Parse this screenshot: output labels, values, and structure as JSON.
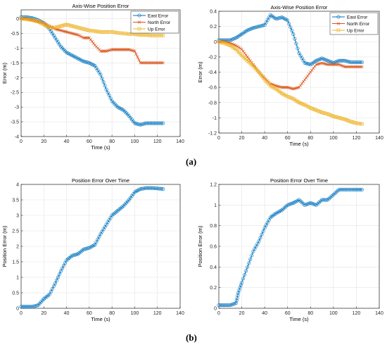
{
  "panel_labels": [
    "(a)",
    "(b)"
  ],
  "colors": {
    "east": "#0072BD",
    "north": "#D95319",
    "up": "#EDB120",
    "axis": "#262626",
    "grid": "#e3e3e3"
  },
  "chart_data": [
    {
      "type": "line",
      "title": "Axis-Wise Position Error",
      "xlabel": "Time (s)",
      "ylabel": "Error (m)",
      "xlim": [
        0,
        140
      ],
      "ylim": [
        -4,
        0.3
      ],
      "xticks": [
        0,
        20,
        40,
        60,
        80,
        100,
        120,
        140
      ],
      "yticks": [
        -4,
        -3.5,
        -3,
        -2.5,
        -2,
        -1.5,
        -1,
        -0.5,
        0
      ],
      "grid": true,
      "legend_position": "top-right",
      "series": [
        {
          "name": "East Error",
          "marker": "circle",
          "color": "#0072BD",
          "x": [
            0,
            5,
            10,
            15,
            20,
            25,
            30,
            35,
            40,
            45,
            50,
            55,
            60,
            65,
            70,
            75,
            80,
            85,
            90,
            95,
            100,
            105,
            110,
            115,
            120,
            125
          ],
          "y": [
            0.05,
            0.05,
            0.02,
            -0.05,
            -0.15,
            -0.35,
            -0.65,
            -0.95,
            -1.15,
            -1.25,
            -1.35,
            -1.45,
            -1.5,
            -1.6,
            -1.9,
            -2.4,
            -2.8,
            -3.0,
            -3.1,
            -3.3,
            -3.55,
            -3.6,
            -3.55,
            -3.55,
            -3.55,
            -3.55
          ]
        },
        {
          "name": "North Error",
          "marker": "x",
          "color": "#D95319",
          "x": [
            0,
            5,
            10,
            15,
            20,
            25,
            30,
            35,
            40,
            45,
            50,
            55,
            60,
            65,
            70,
            75,
            80,
            85,
            90,
            95,
            100,
            105,
            110,
            115,
            120,
            125
          ],
          "y": [
            0.0,
            0.0,
            -0.05,
            -0.1,
            -0.15,
            -0.25,
            -0.35,
            -0.4,
            -0.45,
            -0.5,
            -0.55,
            -0.65,
            -0.65,
            -0.9,
            -1.1,
            -1.1,
            -1.05,
            -1.05,
            -1.05,
            -1.05,
            -1.1,
            -1.5,
            -1.5,
            -1.5,
            -1.5,
            -1.5
          ]
        },
        {
          "name": "Up Error",
          "marker": "square",
          "color": "#EDB120",
          "x": [
            0,
            5,
            10,
            15,
            20,
            25,
            30,
            35,
            40,
            45,
            50,
            55,
            60,
            65,
            70,
            75,
            80,
            85,
            90,
            95,
            100,
            105,
            110,
            115,
            120,
            125
          ],
          "y": [
            0.0,
            -0.02,
            -0.05,
            -0.1,
            -0.2,
            -0.3,
            -0.3,
            -0.25,
            -0.2,
            -0.25,
            -0.3,
            -0.35,
            -0.4,
            -0.42,
            -0.45,
            -0.45,
            -0.45,
            -0.48,
            -0.5,
            -0.52,
            -0.52,
            -0.55,
            -0.55,
            -0.57,
            -0.57,
            -0.57
          ]
        }
      ]
    },
    {
      "type": "line",
      "title": "Axis-Wise Position Error",
      "xlabel": "Time (s)",
      "ylabel": "Error (m)",
      "xlim": [
        0,
        140
      ],
      "ylim": [
        -1.2,
        0.4
      ],
      "xticks": [
        0,
        20,
        40,
        60,
        80,
        100,
        120,
        140
      ],
      "yticks": [
        -1.2,
        -1,
        -0.8,
        -0.6,
        -0.4,
        -0.2,
        0,
        0.2,
        0.4
      ],
      "grid": true,
      "legend_position": "top-right",
      "series": [
        {
          "name": "East Error",
          "marker": "circle",
          "color": "#0072BD",
          "x": [
            0,
            5,
            10,
            15,
            20,
            25,
            30,
            35,
            40,
            45,
            50,
            55,
            60,
            65,
            70,
            75,
            80,
            85,
            90,
            95,
            100,
            105,
            110,
            115,
            120,
            125
          ],
          "y": [
            0.02,
            0.02,
            0.02,
            0.05,
            0.1,
            0.15,
            0.18,
            0.2,
            0.22,
            0.35,
            0.3,
            0.32,
            0.28,
            0.1,
            -0.15,
            -0.28,
            -0.3,
            -0.25,
            -0.22,
            -0.25,
            -0.28,
            -0.25,
            -0.25,
            -0.27,
            -0.27,
            -0.27
          ]
        },
        {
          "name": "North Error",
          "marker": "x",
          "color": "#D95319",
          "x": [
            0,
            5,
            10,
            15,
            20,
            25,
            30,
            35,
            40,
            45,
            50,
            55,
            60,
            65,
            70,
            75,
            80,
            85,
            90,
            95,
            100,
            105,
            110,
            115,
            120,
            125
          ],
          "y": [
            0.0,
            0.0,
            -0.02,
            -0.05,
            -0.1,
            -0.2,
            -0.3,
            -0.4,
            -0.48,
            -0.55,
            -0.58,
            -0.6,
            -0.6,
            -0.62,
            -0.6,
            -0.5,
            -0.4,
            -0.3,
            -0.28,
            -0.3,
            -0.3,
            -0.3,
            -0.33,
            -0.33,
            -0.33,
            -0.33
          ]
        },
        {
          "name": "Up Error",
          "marker": "square",
          "color": "#EDB120",
          "x": [
            0,
            5,
            10,
            15,
            20,
            25,
            30,
            35,
            40,
            45,
            50,
            55,
            60,
            65,
            70,
            75,
            80,
            85,
            90,
            95,
            100,
            105,
            110,
            115,
            120,
            125
          ],
          "y": [
            0.0,
            -0.02,
            -0.05,
            -0.1,
            -0.18,
            -0.25,
            -0.32,
            -0.4,
            -0.5,
            -0.58,
            -0.62,
            -0.68,
            -0.72,
            -0.75,
            -0.8,
            -0.83,
            -0.87,
            -0.9,
            -0.93,
            -0.95,
            -0.98,
            -1.0,
            -1.02,
            -1.05,
            -1.07,
            -1.08
          ]
        }
      ]
    },
    {
      "type": "line",
      "title": "Position Error Over Time",
      "xlabel": "Time (s)",
      "ylabel": "Position Error (m)",
      "xlim": [
        0,
        140
      ],
      "ylim": [
        0,
        4
      ],
      "xticks": [
        0,
        20,
        40,
        60,
        80,
        100,
        120,
        140
      ],
      "yticks": [
        0,
        0.5,
        1,
        1.5,
        2,
        2.5,
        3,
        3.5,
        4
      ],
      "grid": true,
      "series": [
        {
          "marker": "circle",
          "color": "#0072BD",
          "x": [
            0,
            5,
            10,
            15,
            20,
            25,
            30,
            35,
            40,
            45,
            50,
            55,
            60,
            65,
            70,
            75,
            80,
            85,
            90,
            95,
            100,
            105,
            110,
            115,
            120,
            125
          ],
          "y": [
            0.05,
            0.05,
            0.05,
            0.1,
            0.3,
            0.45,
            0.8,
            1.2,
            1.55,
            1.7,
            1.75,
            1.9,
            1.95,
            2.05,
            2.4,
            2.7,
            3.0,
            3.15,
            3.3,
            3.5,
            3.75,
            3.85,
            3.88,
            3.88,
            3.87,
            3.85
          ]
        }
      ]
    },
    {
      "type": "line",
      "title": "Position Error Over Time",
      "xlabel": "Time (s)",
      "ylabel": "Position Error (m)",
      "xlim": [
        0,
        140
      ],
      "ylim": [
        0,
        1.2
      ],
      "xticks": [
        0,
        20,
        40,
        60,
        80,
        100,
        120,
        140
      ],
      "yticks": [
        0,
        0.2,
        0.4,
        0.6,
        0.8,
        1,
        1.2
      ],
      "grid": true,
      "series": [
        {
          "marker": "circle",
          "color": "#0072BD",
          "x": [
            0,
            5,
            10,
            15,
            17,
            20,
            25,
            30,
            35,
            40,
            45,
            50,
            55,
            60,
            65,
            70,
            75,
            80,
            85,
            90,
            95,
            100,
            105,
            110,
            115,
            120,
            125
          ],
          "y": [
            0.03,
            0.03,
            0.03,
            0.05,
            0.15,
            0.25,
            0.4,
            0.55,
            0.65,
            0.78,
            0.88,
            0.92,
            0.95,
            1.0,
            1.02,
            1.05,
            1.0,
            1.02,
            1.0,
            1.05,
            1.05,
            1.1,
            1.15,
            1.15,
            1.15,
            1.15,
            1.15
          ]
        }
      ]
    }
  ]
}
